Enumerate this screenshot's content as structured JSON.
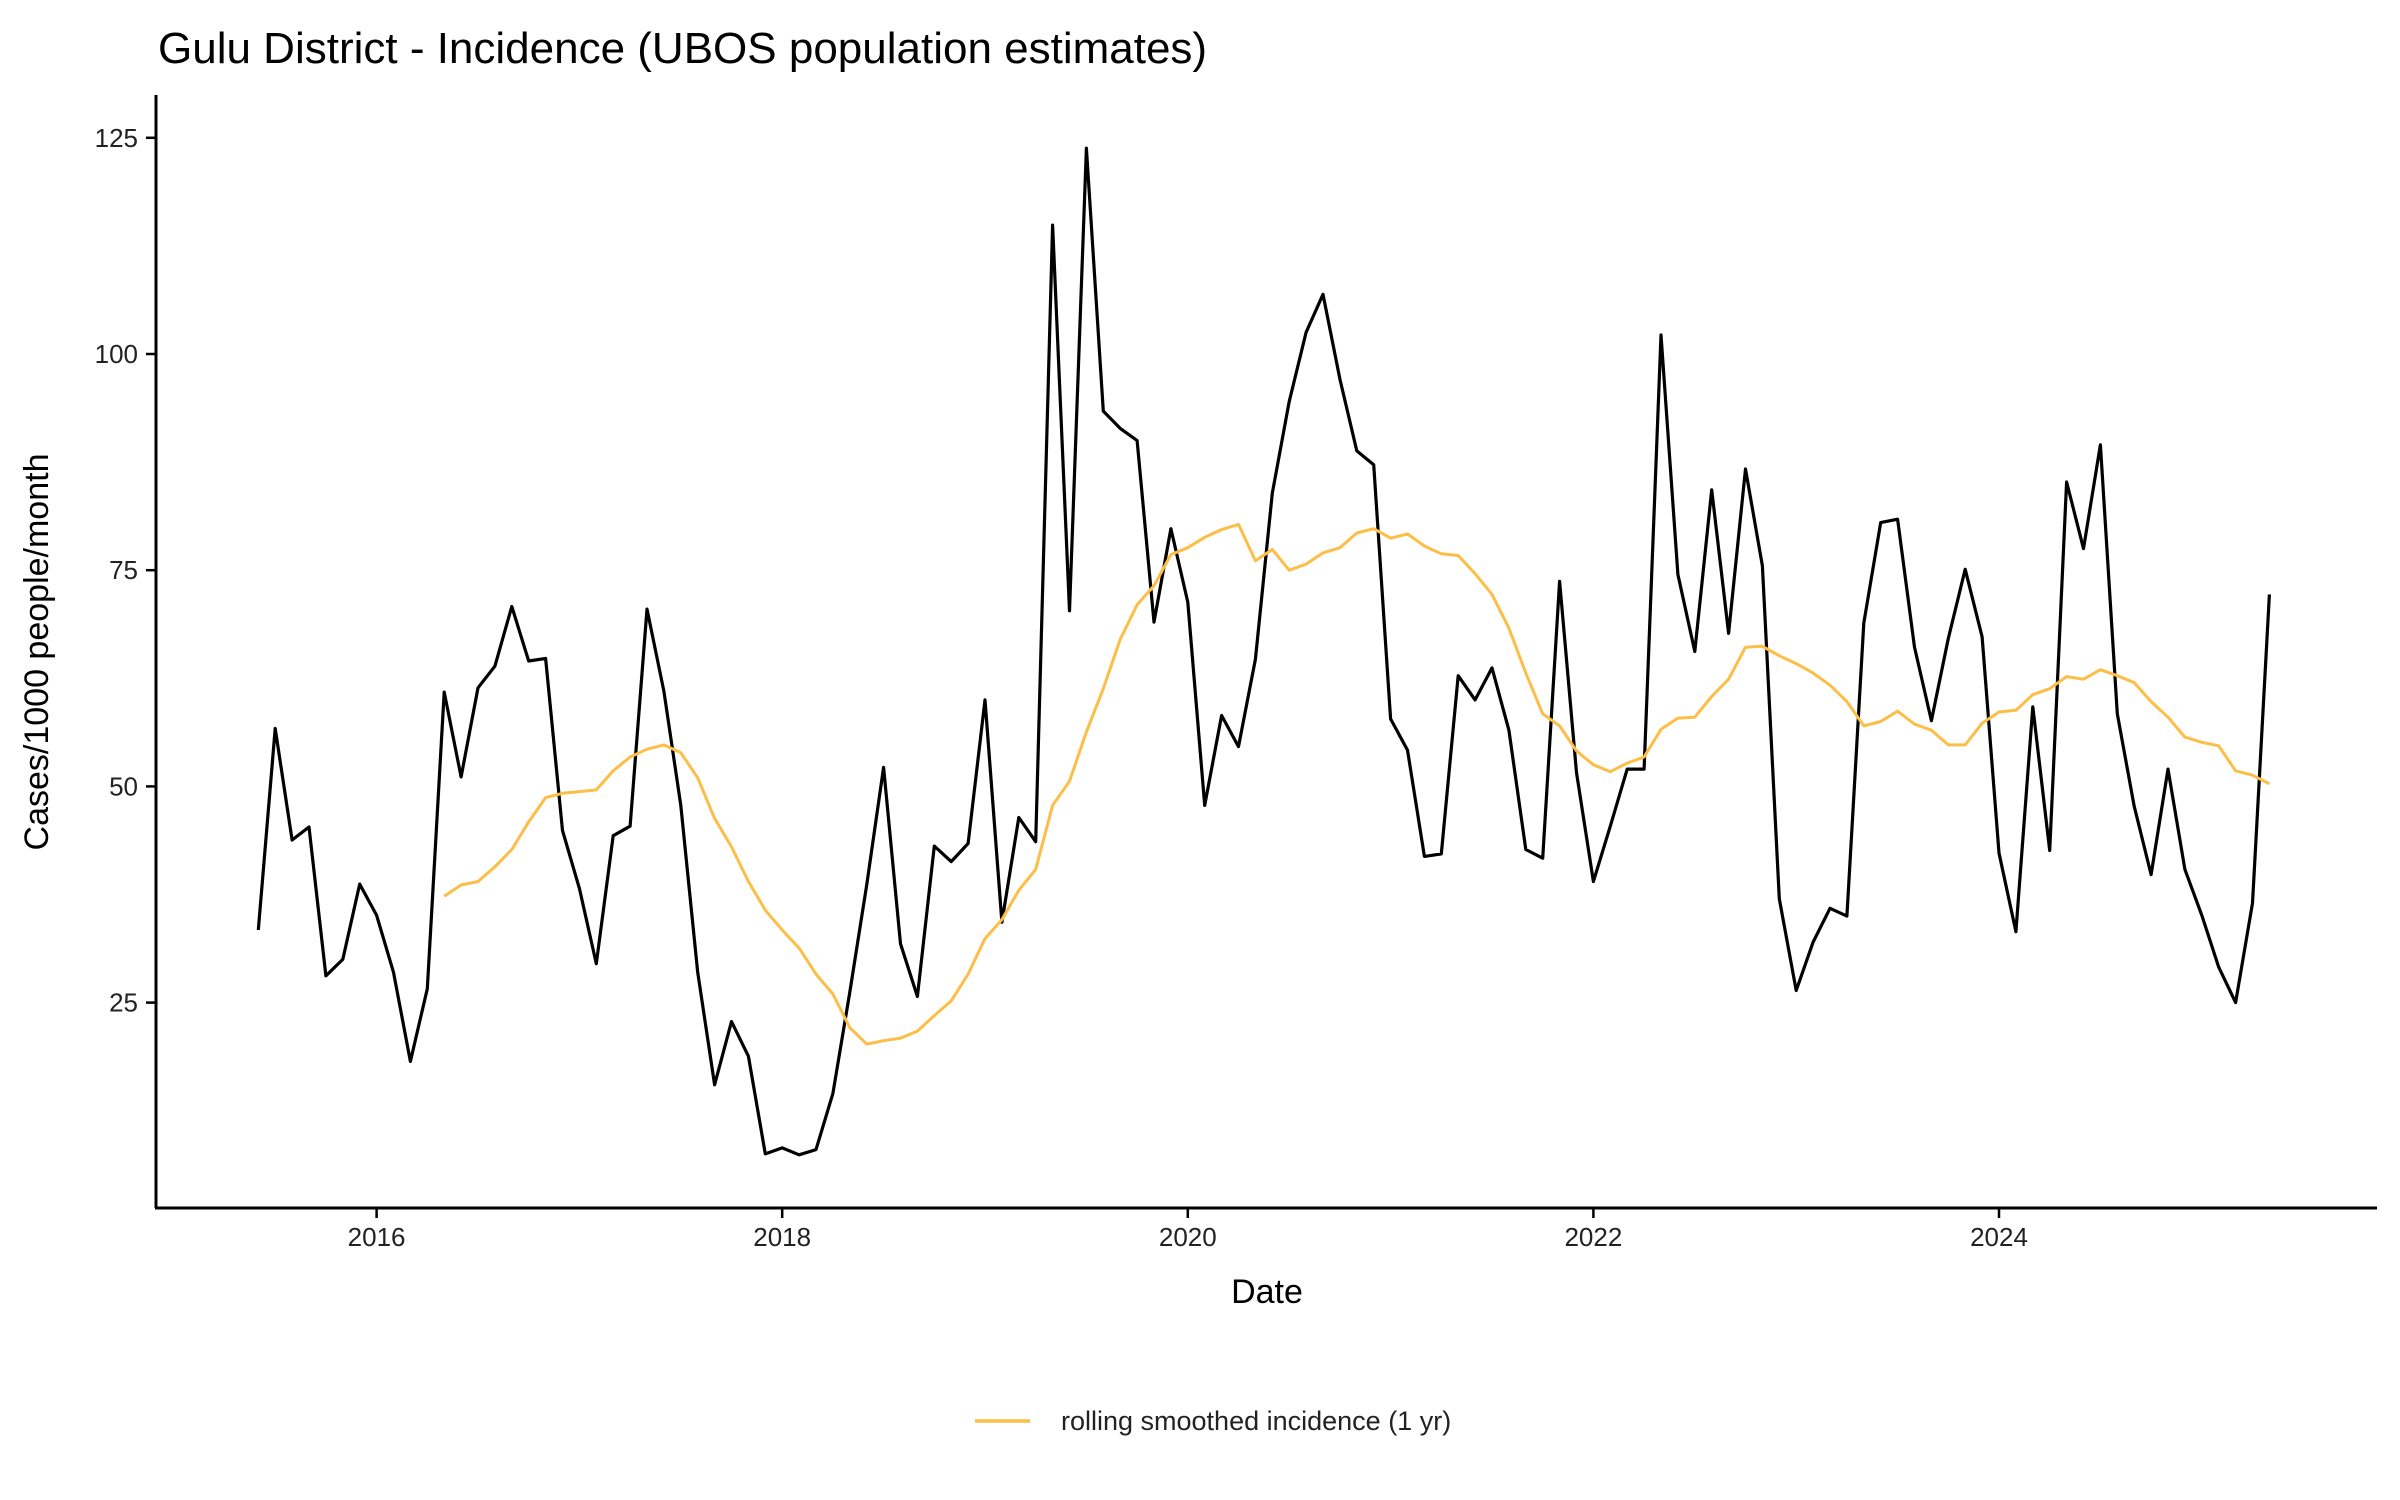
{
  "chart_data": {
    "type": "line",
    "title": "Gulu District - Incidence (UBOS population estimates)",
    "xlabel": "Date",
    "ylabel": "Cases/1000 people/month",
    "xlim": [
      "2015-01",
      "2025-11"
    ],
    "ylim": [
      3,
      129
    ],
    "x_ticks": [
      "2016",
      "2018",
      "2020",
      "2022",
      "2024"
    ],
    "y_ticks": [
      25,
      50,
      75,
      100,
      125
    ],
    "grid": false,
    "legend_position": "bottom",
    "series": [
      {
        "color": "#000000",
        "x": [
          "2015-06",
          "2015-07",
          "2015-08",
          "2015-09",
          "2015-10",
          "2015-11",
          "2015-12",
          "2016-01",
          "2016-02",
          "2016-03",
          "2016-04",
          "2016-05",
          "2016-06",
          "2016-07",
          "2016-08",
          "2016-09",
          "2016-10",
          "2016-11",
          "2016-12",
          "2017-01",
          "2017-02",
          "2017-03",
          "2017-04",
          "2017-05",
          "2017-06",
          "2017-07",
          "2017-08",
          "2017-09",
          "2017-10",
          "2017-11",
          "2017-12",
          "2018-01",
          "2018-02",
          "2018-03",
          "2018-04",
          "2018-05",
          "2018-06",
          "2018-07",
          "2018-08",
          "2018-09",
          "2018-10",
          "2018-11",
          "2018-12",
          "2019-01",
          "2019-02",
          "2019-03",
          "2019-04",
          "2019-05",
          "2019-06",
          "2019-07",
          "2019-08",
          "2019-09",
          "2019-10",
          "2019-11",
          "2019-12",
          "2020-01",
          "2020-02",
          "2020-03",
          "2020-04",
          "2020-05",
          "2020-06",
          "2020-07",
          "2020-08",
          "2020-09",
          "2020-10",
          "2020-11",
          "2020-12",
          "2021-01",
          "2021-02",
          "2021-03",
          "2021-04",
          "2021-05",
          "2021-06",
          "2021-07",
          "2021-08",
          "2021-09",
          "2021-10",
          "2021-11",
          "2021-12",
          "2022-01",
          "2022-02",
          "2022-03",
          "2022-04",
          "2022-05",
          "2022-06",
          "2022-07",
          "2022-08",
          "2022-09",
          "2022-10",
          "2022-11",
          "2022-12",
          "2023-01",
          "2023-02",
          "2023-03",
          "2023-04",
          "2023-05",
          "2023-06",
          "2023-07",
          "2023-08",
          "2023-09",
          "2023-10",
          "2023-11",
          "2023-12",
          "2024-01",
          "2024-02",
          "2024-03",
          "2024-04",
          "2024-05",
          "2024-06",
          "2024-07",
          "2024-08",
          "2024-09",
          "2024-10",
          "2024-11",
          "2024-12",
          "2025-01",
          "2025-02",
          "2025-03",
          "2025-04",
          "2025-05"
        ],
        "values": [
          33.4,
          56.7,
          43.8,
          45.3,
          28.1,
          30.0,
          38.7,
          35.1,
          28.5,
          18.2,
          26.6,
          60.9,
          51.1,
          61.4,
          63.9,
          70.8,
          64.5,
          64.8,
          44.9,
          38.2,
          29.5,
          44.3,
          45.4,
          70.5,
          61.0,
          47.8,
          28.5,
          15.5,
          22.8,
          18.8,
          7.5,
          8.2,
          7.4,
          8.0,
          14.5,
          26.2,
          38.6,
          52.2,
          31.8,
          25.7,
          43.1,
          41.3,
          43.4,
          60.0,
          34.3,
          46.4,
          43.6,
          114.9,
          70.3,
          123.8,
          93.4,
          91.4,
          90.0,
          69.0,
          79.8,
          71.3,
          47.8,
          58.2,
          54.6,
          64.7,
          83.9,
          94.5,
          102.5,
          106.9,
          97.1,
          88.8,
          87.2,
          57.8,
          54.2,
          41.9,
          42.2,
          62.8,
          60.0,
          63.7,
          56.5,
          42.7,
          41.7,
          73.7,
          51.6,
          39.0,
          45.4,
          52.0,
          52.0,
          102.2,
          74.5,
          65.6,
          84.3,
          67.7,
          86.7,
          75.5,
          37.0,
          26.4,
          32.0,
          35.9,
          35.0,
          68.9,
          80.5,
          80.9,
          66.1,
          57.6,
          67.1,
          75.1,
          67.3,
          42.3,
          33.2,
          59.2,
          42.6,
          85.2,
          77.5,
          89.5,
          58.4,
          47.7,
          39.8,
          52.0,
          40.4,
          35.1,
          29.1,
          25.0,
          36.5,
          72.2
        ]
      },
      {
        "name": "rolling smoothed incidence (1 yr)",
        "color": "#FDBE47",
        "x": [
          "2016-05",
          "2016-06",
          "2016-07",
          "2016-08",
          "2016-09",
          "2016-10",
          "2016-11",
          "2016-12",
          "2017-01",
          "2017-02",
          "2017-03",
          "2017-04",
          "2017-05",
          "2017-06",
          "2017-07",
          "2017-08",
          "2017-09",
          "2017-10",
          "2017-11",
          "2017-12",
          "2018-01",
          "2018-02",
          "2018-03",
          "2018-04",
          "2018-05",
          "2018-06",
          "2018-07",
          "2018-08",
          "2018-09",
          "2018-10",
          "2018-11",
          "2018-12",
          "2019-01",
          "2019-02",
          "2019-03",
          "2019-04",
          "2019-05",
          "2019-06",
          "2019-07",
          "2019-08",
          "2019-09",
          "2019-10",
          "2019-11",
          "2019-12",
          "2020-01",
          "2020-02",
          "2020-03",
          "2020-04",
          "2020-05",
          "2020-06",
          "2020-07",
          "2020-08",
          "2020-09",
          "2020-10",
          "2020-11",
          "2020-12",
          "2021-01",
          "2021-02",
          "2021-03",
          "2021-04",
          "2021-05",
          "2021-06",
          "2021-07",
          "2021-08",
          "2021-09",
          "2021-10",
          "2021-11",
          "2021-12",
          "2022-01",
          "2022-02",
          "2022-03",
          "2022-04",
          "2022-05",
          "2022-06",
          "2022-07",
          "2022-08",
          "2022-09",
          "2022-10",
          "2022-11",
          "2022-12",
          "2023-01",
          "2023-02",
          "2023-03",
          "2023-04",
          "2023-05",
          "2023-06",
          "2023-07",
          "2023-08",
          "2023-09",
          "2023-10",
          "2023-11",
          "2023-12",
          "2024-01",
          "2024-02",
          "2024-03",
          "2024-04",
          "2024-05",
          "2024-06",
          "2024-07",
          "2024-08",
          "2024-09",
          "2024-10",
          "2024-11",
          "2024-12",
          "2025-01",
          "2025-02",
          "2025-03",
          "2025-04",
          "2025-05"
        ],
        "values": [
          37.3,
          38.6,
          39.0,
          40.7,
          42.7,
          45.9,
          48.7,
          49.2,
          49.4,
          49.6,
          51.8,
          53.4,
          54.3,
          54.8,
          53.9,
          51.0,
          46.3,
          43.0,
          39.0,
          35.7,
          33.4,
          31.3,
          28.3,
          26.0,
          22.1,
          20.2,
          20.6,
          20.9,
          21.7,
          23.5,
          25.2,
          28.3,
          32.4,
          34.6,
          38.0,
          40.4,
          47.8,
          50.6,
          56.3,
          61.3,
          67.0,
          71.0,
          73.2,
          76.8,
          77.6,
          78.8,
          79.7,
          80.3,
          76.1,
          77.4,
          75.0,
          75.7,
          77.0,
          77.6,
          79.3,
          79.8,
          78.7,
          79.2,
          77.8,
          76.9,
          76.7,
          74.6,
          72.2,
          68.3,
          63.1,
          58.4,
          57.0,
          54.1,
          52.5,
          51.7,
          52.7,
          53.4,
          56.6,
          57.9,
          58.0,
          60.4,
          62.4,
          66.1,
          66.2,
          65.1,
          64.2,
          63.1,
          61.7,
          59.8,
          57.0,
          57.5,
          58.7,
          57.2,
          56.5,
          54.8,
          54.8,
          57.3,
          58.6,
          58.8,
          60.6,
          61.3,
          62.7,
          62.4,
          63.5,
          62.8,
          62.0,
          59.8,
          58.0,
          55.7,
          55.1,
          54.7,
          51.8,
          51.3,
          50.3
        ]
      }
    ]
  }
}
